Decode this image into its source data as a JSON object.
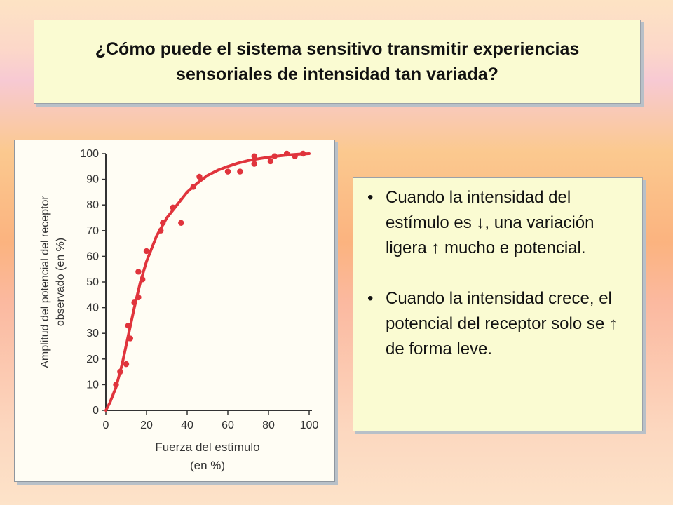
{
  "title": "¿Cómo puede el sistema sensitivo transmitir experiencias sensoriales de intensidad tan variada?",
  "bullets": [
    "Cuando la intensidad del estímulo es ↓, una variación ligera ↑ mucho e potencial.",
    "Cuando la intensidad crece, el potencial del receptor solo se ↑ de forma leve."
  ],
  "colors": {
    "curve": "#e0343c",
    "points": "#e0343c",
    "axis": "#333333"
  },
  "chart_data": {
    "type": "scatter",
    "xlabel": [
      "Fuerza del estímulo",
      "(en %)"
    ],
    "ylabel": [
      "Amplitud del potencial del receptor",
      "observado (en %)"
    ],
    "xlim": [
      0,
      100
    ],
    "ylim": [
      0,
      100
    ],
    "x_ticks": [
      "0",
      "20",
      "40",
      "60",
      "80",
      "100"
    ],
    "y_ticks": [
      "0",
      "10",
      "20",
      "30",
      "40",
      "50",
      "60",
      "70",
      "80",
      "90",
      "100"
    ],
    "grid": false,
    "points": [
      [
        5,
        10
      ],
      [
        7,
        15
      ],
      [
        10,
        18
      ],
      [
        11,
        33
      ],
      [
        12,
        28
      ],
      [
        14,
        42
      ],
      [
        16,
        54
      ],
      [
        16,
        44
      ],
      [
        18,
        51
      ],
      [
        20,
        62
      ],
      [
        27,
        70
      ],
      [
        28,
        73
      ],
      [
        33,
        79
      ],
      [
        37,
        73
      ],
      [
        43,
        87
      ],
      [
        46,
        91
      ],
      [
        60,
        93
      ],
      [
        66,
        93
      ],
      [
        73,
        96
      ],
      [
        73,
        99
      ],
      [
        81,
        97
      ],
      [
        83,
        99
      ],
      [
        89,
        100
      ],
      [
        93,
        99
      ],
      [
        97,
        100
      ]
    ],
    "fit_curve": [
      [
        0,
        0
      ],
      [
        2,
        3
      ],
      [
        5,
        9
      ],
      [
        8,
        18
      ],
      [
        11,
        29
      ],
      [
        14,
        40
      ],
      [
        17,
        50
      ],
      [
        20,
        58
      ],
      [
        25,
        68
      ],
      [
        30,
        75
      ],
      [
        35,
        80
      ],
      [
        40,
        85
      ],
      [
        45,
        88.5
      ],
      [
        50,
        91.5
      ],
      [
        55,
        93.5
      ],
      [
        60,
        95
      ],
      [
        65,
        96.3
      ],
      [
        70,
        97.3
      ],
      [
        75,
        98
      ],
      [
        80,
        98.6
      ],
      [
        85,
        99.1
      ],
      [
        90,
        99.5
      ],
      [
        95,
        99.8
      ],
      [
        100,
        100
      ]
    ]
  }
}
